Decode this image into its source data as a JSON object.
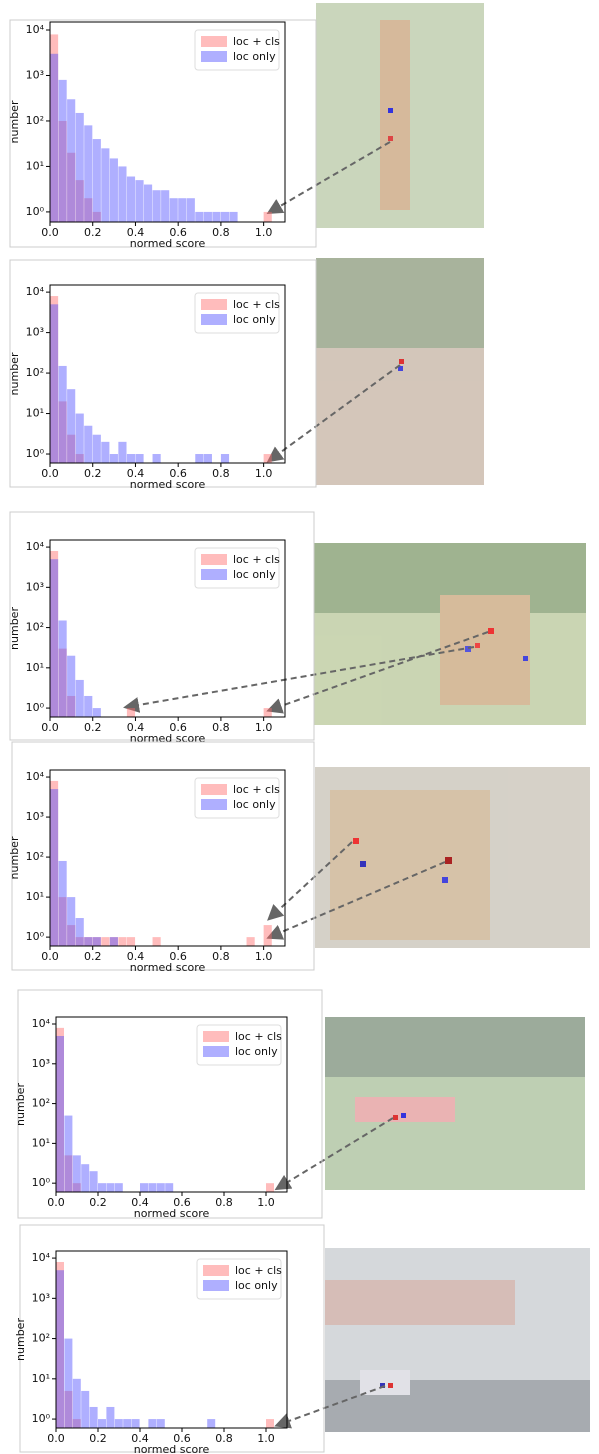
{
  "chart_data": [
    {
      "type": "histogram",
      "xlabel": "normed score",
      "ylabel": "number",
      "log_y": true,
      "legend": "upper right",
      "bins": [
        0,
        0.04,
        0.08,
        0.12,
        0.16,
        0.2,
        0.24,
        0.28,
        0.32,
        0.36,
        0.4,
        0.44,
        0.48,
        0.52,
        0.56,
        0.6,
        0.64,
        0.68,
        0.72,
        0.76,
        0.8,
        0.84,
        0.88,
        0.92,
        0.96,
        1.0,
        1.04
      ],
      "series": [
        {
          "name": "loc + cls",
          "color": "#ff6b6b",
          "values": [
            8000,
            100,
            20,
            5,
            2,
            1,
            0,
            0,
            0,
            0,
            0,
            0,
            0,
            0,
            0,
            0,
            0,
            0,
            0,
            0,
            0,
            0,
            0,
            0,
            0,
            1
          ]
        },
        {
          "name": "loc only",
          "color": "#4d4dff",
          "values": [
            3000,
            800,
            300,
            150,
            80,
            40,
            25,
            15,
            10,
            6,
            5,
            4,
            3,
            3,
            2,
            2,
            2,
            1,
            1,
            1,
            1,
            1,
            0,
            0,
            0,
            0
          ]
        }
      ],
      "xlim": [
        0,
        1.1
      ],
      "ylim": [
        0.6,
        15000
      ],
      "xticks": [
        {
          "value": 0,
          "label": "0.0"
        },
        0.2,
        0.4,
        0.6,
        0.8,
        {
          "value": 1,
          "label": "1.0"
        }
      ],
      "yticks": [
        {
          "value": 1,
          "label": "10⁰"
        },
        {
          "value": 10,
          "label": "10¹"
        },
        {
          "value": 100,
          "label": "10²"
        },
        {
          "value": 1000,
          "label": "10³"
        },
        {
          "value": 10000,
          "label": "10⁴"
        }
      ]
    },
    {
      "type": "histogram",
      "xlabel": "normed score",
      "ylabel": "number",
      "log_y": true,
      "legend": "upper right",
      "bins": [
        0,
        0.04,
        0.08,
        0.12,
        0.16,
        0.2,
        0.24,
        0.28,
        0.32,
        0.36,
        0.4,
        0.44,
        0.48,
        0.52,
        0.56,
        0.6,
        0.64,
        0.68,
        0.72,
        0.76,
        0.8,
        0.84,
        0.88,
        0.92,
        0.96,
        1.0,
        1.04
      ],
      "series": [
        {
          "name": "loc + cls",
          "color": "#ff6b6b",
          "values": [
            8000,
            20,
            3,
            1,
            0,
            0,
            0,
            0,
            0,
            0,
            0,
            0,
            0,
            0,
            0,
            0,
            0,
            0,
            0,
            0,
            0,
            0,
            0,
            0,
            0,
            1
          ]
        },
        {
          "name": "loc only",
          "color": "#4d4dff",
          "values": [
            5000,
            150,
            40,
            10,
            5,
            3,
            2,
            1,
            2,
            1,
            1,
            0,
            1,
            0,
            0,
            0,
            0,
            1,
            1,
            0,
            1,
            0,
            0,
            0,
            0,
            0
          ]
        }
      ],
      "xlim": [
        0,
        1.1
      ],
      "ylim": [
        0.6,
        15000
      ],
      "xticks": [
        {
          "value": 0,
          "label": "0.0"
        },
        0.2,
        0.4,
        0.6,
        0.8,
        {
          "value": 1,
          "label": "1.0"
        }
      ],
      "yticks": [
        {
          "value": 1,
          "label": "10⁰"
        },
        {
          "value": 10,
          "label": "10¹"
        },
        {
          "value": 100,
          "label": "10²"
        },
        {
          "value": 1000,
          "label": "10³"
        },
        {
          "value": 10000,
          "label": "10⁴"
        }
      ]
    },
    {
      "type": "histogram",
      "xlabel": "normed score",
      "ylabel": "number",
      "log_y": true,
      "legend": "upper right",
      "bins": [
        0,
        0.04,
        0.08,
        0.12,
        0.16,
        0.2,
        0.24,
        0.28,
        0.32,
        0.36,
        0.4,
        0.44,
        0.48,
        0.52,
        0.56,
        0.6,
        0.64,
        0.68,
        0.72,
        0.76,
        0.8,
        0.84,
        0.88,
        0.92,
        0.96,
        1.0,
        1.04
      ],
      "series": [
        {
          "name": "loc + cls",
          "color": "#ff6b6b",
          "values": [
            8000,
            30,
            2,
            0,
            0,
            0,
            0,
            0,
            0,
            1,
            0,
            0,
            0,
            0,
            0,
            0,
            0,
            0,
            0,
            0,
            0,
            0,
            0,
            0,
            0,
            1
          ]
        },
        {
          "name": "loc only",
          "color": "#4d4dff",
          "values": [
            5000,
            150,
            20,
            5,
            2,
            1,
            0,
            0,
            0,
            0,
            0,
            0,
            0,
            0,
            0,
            0,
            0,
            0,
            0,
            0,
            0,
            0,
            0,
            0,
            0,
            0
          ]
        }
      ],
      "xlim": [
        0,
        1.1
      ],
      "ylim": [
        0.6,
        15000
      ],
      "xticks": [
        {
          "value": 0,
          "label": "0.0"
        },
        0.2,
        0.4,
        0.6,
        0.8,
        {
          "value": 1,
          "label": "1.0"
        }
      ],
      "yticks": [
        {
          "value": 1,
          "label": "10⁰"
        },
        {
          "value": 10,
          "label": "10¹"
        },
        {
          "value": 100,
          "label": "10²"
        },
        {
          "value": 1000,
          "label": "10³"
        },
        {
          "value": 10000,
          "label": "10⁴"
        }
      ]
    },
    {
      "type": "histogram",
      "xlabel": "normed score",
      "ylabel": "number",
      "log_y": true,
      "legend": "upper right",
      "bins": [
        0,
        0.04,
        0.08,
        0.12,
        0.16,
        0.2,
        0.24,
        0.28,
        0.32,
        0.36,
        0.4,
        0.44,
        0.48,
        0.52,
        0.56,
        0.6,
        0.64,
        0.68,
        0.72,
        0.76,
        0.8,
        0.84,
        0.88,
        0.92,
        0.96,
        1.0,
        1.04
      ],
      "series": [
        {
          "name": "loc + cls",
          "color": "#ff6b6b",
          "values": [
            8000,
            10,
            2,
            1,
            1,
            1,
            1,
            1,
            1,
            1,
            0,
            0,
            1,
            0,
            0,
            0,
            0,
            0,
            0,
            0,
            0,
            0,
            0,
            1,
            0,
            2
          ]
        },
        {
          "name": "loc only",
          "color": "#4d4dff",
          "values": [
            5000,
            80,
            10,
            3,
            1,
            1,
            0,
            1,
            0,
            0,
            0,
            0,
            0,
            0,
            0,
            0,
            0,
            0,
            0,
            0,
            0,
            0,
            0,
            0,
            0,
            0
          ]
        }
      ],
      "xlim": [
        0,
        1.1
      ],
      "ylim": [
        0.6,
        15000
      ],
      "xticks": [
        {
          "value": 0,
          "label": "0.0"
        },
        0.2,
        0.4,
        0.6,
        0.8,
        {
          "value": 1,
          "label": "1.0"
        }
      ],
      "yticks": [
        {
          "value": 1,
          "label": "10⁰"
        },
        {
          "value": 10,
          "label": "10¹"
        },
        {
          "value": 100,
          "label": "10²"
        },
        {
          "value": 1000,
          "label": "10³"
        },
        {
          "value": 10000,
          "label": "10⁴"
        }
      ]
    },
    {
      "type": "histogram",
      "xlabel": "normed score",
      "ylabel": "number",
      "log_y": true,
      "legend": "upper right",
      "bins": [
        0,
        0.04,
        0.08,
        0.12,
        0.16,
        0.2,
        0.24,
        0.28,
        0.32,
        0.36,
        0.4,
        0.44,
        0.48,
        0.52,
        0.56,
        0.6,
        0.64,
        0.68,
        0.72,
        0.76,
        0.8,
        0.84,
        0.88,
        0.92,
        0.96,
        1.0,
        1.04
      ],
      "series": [
        {
          "name": "loc + cls",
          "color": "#ff6b6b",
          "values": [
            8000,
            5,
            1,
            0,
            0,
            0,
            0,
            0,
            0,
            0,
            0,
            0,
            0,
            0,
            0,
            0,
            0,
            0,
            0,
            0,
            0,
            0,
            0,
            0,
            0,
            1
          ]
        },
        {
          "name": "loc only",
          "color": "#4d4dff",
          "values": [
            5000,
            50,
            5,
            3,
            2,
            1,
            1,
            1,
            0,
            0,
            1,
            1,
            1,
            1,
            0,
            0,
            0,
            0,
            0,
            0,
            0,
            0,
            0,
            0,
            0,
            0
          ]
        }
      ],
      "xlim": [
        0,
        1.1
      ],
      "ylim": [
        0.6,
        15000
      ],
      "xticks": [
        {
          "value": 0,
          "label": "0.0"
        },
        0.2,
        0.4,
        0.6,
        0.8,
        {
          "value": 1,
          "label": "1.0"
        }
      ],
      "yticks": [
        {
          "value": 1,
          "label": "10⁰"
        },
        {
          "value": 10,
          "label": "10¹"
        },
        {
          "value": 100,
          "label": "10²"
        },
        {
          "value": 1000,
          "label": "10³"
        },
        {
          "value": 10000,
          "label": "10⁴"
        }
      ]
    },
    {
      "type": "histogram",
      "xlabel": "normed score",
      "ylabel": "number",
      "log_y": true,
      "legend": "upper right",
      "bins": [
        0,
        0.04,
        0.08,
        0.12,
        0.16,
        0.2,
        0.24,
        0.28,
        0.32,
        0.36,
        0.4,
        0.44,
        0.48,
        0.52,
        0.56,
        0.6,
        0.64,
        0.68,
        0.72,
        0.76,
        0.8,
        0.84,
        0.88,
        0.92,
        0.96,
        1.0,
        1.04
      ],
      "series": [
        {
          "name": "loc + cls",
          "color": "#ff6b6b",
          "values": [
            8000,
            5,
            1,
            0,
            0,
            0,
            0,
            0,
            0,
            0,
            0,
            0,
            0,
            0,
            0,
            0,
            0,
            0,
            0,
            0,
            0,
            0,
            0,
            0,
            0,
            1
          ]
        },
        {
          "name": "loc only",
          "color": "#4d4dff",
          "values": [
            5000,
            100,
            10,
            5,
            2,
            1,
            2,
            1,
            1,
            1,
            0,
            1,
            1,
            0,
            0,
            0,
            0,
            0,
            1,
            0,
            0,
            0,
            0,
            0,
            0,
            0
          ]
        }
      ],
      "xlim": [
        0,
        1.1
      ],
      "ylim": [
        0.6,
        15000
      ],
      "xticks": [
        {
          "value": 0,
          "label": "0.0"
        },
        0.2,
        0.4,
        0.6,
        0.8,
        {
          "value": 1,
          "label": "1.0"
        }
      ],
      "yticks": [
        {
          "value": 1,
          "label": "10⁰"
        },
        {
          "value": 10,
          "label": "10¹"
        },
        {
          "value": 100,
          "label": "10²"
        },
        {
          "value": 1000,
          "label": "10³"
        },
        {
          "value": 10000,
          "label": "10⁴"
        }
      ]
    }
  ]
}
